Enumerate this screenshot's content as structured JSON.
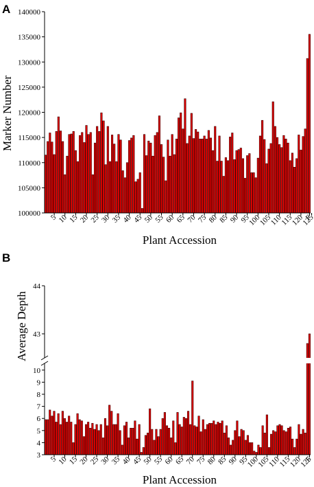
{
  "chart_data": [
    {
      "type": "bar",
      "panel_label": "A",
      "xlabel": "Plant Accession",
      "ylabel": "Marker Number",
      "ylim": [
        100000,
        140000
      ],
      "yticks": [
        "100000",
        "105000",
        "110000",
        "115000",
        "120000",
        "125000",
        "130000",
        "135000",
        "140000"
      ],
      "xticks": [
        "5",
        "10",
        "15",
        "20",
        "25",
        "30",
        "35",
        "40",
        "45",
        "50",
        "55",
        "60",
        "65",
        "70",
        "75",
        "80",
        "85",
        "90",
        "95",
        "100",
        "105",
        "110",
        "115",
        "120",
        "125",
        "F"
      ],
      "values": [
        111500,
        114200,
        115900,
        114100,
        111600,
        116200,
        119100,
        116300,
        114200,
        107600,
        111300,
        115600,
        115700,
        116200,
        112400,
        110200,
        115400,
        116000,
        114000,
        117400,
        115600,
        116000,
        107600,
        113900,
        117200,
        116200,
        119900,
        118300,
        109600,
        117200,
        110200,
        115500,
        113700,
        110200,
        115600,
        114500,
        108400,
        107000,
        110000,
        114400,
        114900,
        115400,
        106200,
        106700,
        108000,
        100900,
        115600,
        111400,
        114300,
        113900,
        111300,
        115400,
        116000,
        119300,
        113600,
        111100,
        106400,
        114500,
        111300,
        115600,
        111600,
        114700,
        118900,
        119900,
        116700,
        122700,
        113800,
        115300,
        119800,
        114800,
        116600,
        116100,
        114700,
        114700,
        115300,
        114700,
        116400,
        114900,
        112400,
        117200,
        110300,
        115300,
        110300,
        107300,
        111000,
        110400,
        115100,
        115900,
        110600,
        112400,
        112600,
        112900,
        110800,
        106900,
        111400,
        111800,
        108000,
        108000,
        107000,
        110900,
        115300,
        118400,
        114600,
        109800,
        112700,
        113800,
        122100,
        117200,
        115000,
        113600,
        113000,
        115400,
        114700,
        113900,
        110400,
        111900,
        109100,
        110800,
        115500,
        112500,
        115200,
        116700,
        130700,
        135500
      ]
    },
    {
      "type": "bar",
      "panel_label": "B",
      "xlabel": "Plant Accession",
      "ylabel": "Average Depth",
      "ylim": [
        3,
        44
      ],
      "axis_break": [
        10.5,
        42.5
      ],
      "yticks": [
        "3",
        "4",
        "5",
        "6",
        "7",
        "8",
        "9",
        "10",
        "43",
        "44"
      ],
      "xticks": [
        "5",
        "10",
        "15",
        "20",
        "25",
        "30",
        "35",
        "40",
        "45",
        "50",
        "55",
        "60",
        "65",
        "70",
        "75",
        "80",
        "85",
        "90",
        "95",
        "100",
        "105",
        "110",
        "115",
        "120",
        "125",
        "F"
      ],
      "values": [
        5.9,
        5.9,
        6.7,
        6.2,
        6.6,
        5.7,
        6.4,
        5.5,
        6.6,
        6.0,
        5.7,
        6.2,
        5.7,
        4.0,
        5.5,
        6.4,
        5.9,
        5.8,
        4.5,
        5.5,
        5.7,
        5.2,
        5.6,
        5.1,
        5.5,
        5.0,
        5.5,
        4.4,
        6.0,
        5.4,
        7.1,
        6.6,
        5.5,
        5.5,
        6.4,
        5.0,
        3.8,
        5.4,
        5.7,
        4.4,
        5.2,
        5.2,
        5.8,
        4.3,
        5.5,
        3.2,
        3.6,
        4.6,
        4.8,
        6.8,
        5.1,
        4.2,
        5.1,
        4.5,
        5.1,
        6.0,
        6.5,
        5.4,
        5.2,
        4.4,
        5.8,
        4.0,
        6.5,
        5.5,
        5.3,
        6.1,
        6.0,
        6.6,
        5.5,
        9.1,
        5.4,
        5.3,
        6.2,
        4.9,
        5.9,
        5.1,
        5.5,
        5.6,
        5.6,
        5.8,
        5.5,
        5.7,
        5.6,
        5.8,
        4.8,
        5.4,
        4.4,
        3.8,
        4.2,
        5.0,
        5.8,
        4.5,
        5.1,
        5.0,
        4.2,
        4.6,
        4.0,
        4.0,
        3.3,
        3.2,
        3.8,
        3.6,
        5.4,
        4.8,
        6.3,
        3.6,
        4.7,
        5.0,
        4.9,
        5.4,
        5.5,
        5.4,
        5.0,
        4.9,
        5.2,
        5.3,
        4.3,
        3.6,
        4.3,
        5.5,
        4.7,
        5.1,
        4.8,
        42.8,
        43.0
      ]
    }
  ]
}
